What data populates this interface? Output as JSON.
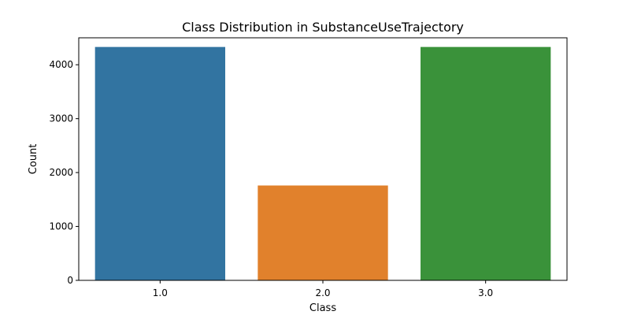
{
  "chart_data": {
    "type": "bar",
    "title": "Class Distribution in SubstanceUseTrajectory",
    "xlabel": "Class",
    "ylabel": "Count",
    "categories": [
      "1.0",
      "2.0",
      "3.0"
    ],
    "values": [
      4330,
      1760,
      4330
    ],
    "colors": [
      "#3274a1",
      "#e1812c",
      "#3a923a"
    ],
    "ylim": [
      0,
      4500
    ],
    "yticks": [
      0,
      1000,
      2000,
      3000,
      4000
    ],
    "grid": false,
    "legend": false
  }
}
